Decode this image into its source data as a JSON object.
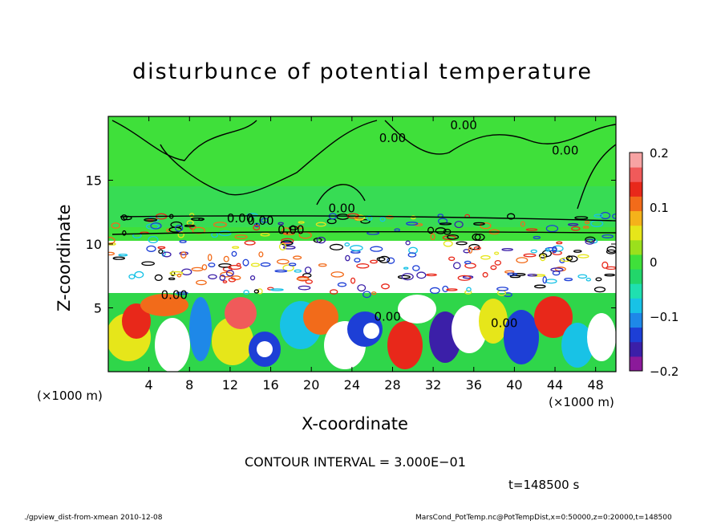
{
  "chart_data": {
    "type": "heatmap",
    "title": "disturbunce of potential temperature",
    "xlabel": "X-coordinate",
    "ylabel": "Z-coordinate",
    "x_unit_left": "(×1000 m)",
    "x_unit_right": "(×1000 m)",
    "xlim": [
      0,
      50
    ],
    "ylim": [
      0,
      20
    ],
    "x_ticks": [
      4,
      8,
      12,
      16,
      20,
      24,
      28,
      32,
      36,
      40,
      44,
      48
    ],
    "y_ticks": [
      5,
      10,
      15
    ],
    "colorbar": {
      "range": [
        -0.2,
        0.2
      ],
      "tick_labels": [
        "0.2",
        "0.1",
        "0",
        "−0.1",
        "−0.2"
      ],
      "tick_values": [
        0.2,
        0.1,
        0,
        -0.1,
        -0.2
      ],
      "colors": [
        "#8b1a9a",
        "#3b1fa8",
        "#1d3fd6",
        "#1e88e8",
        "#18c2e6",
        "#1fe0b0",
        "#22d66a",
        "#3fe03a",
        "#9be01c",
        "#e6e61a",
        "#f5b21a",
        "#f26b1a",
        "#e8281a",
        "#f05a5a",
        "#f7a3a3"
      ]
    },
    "contour_labels": [
      "0.00",
      "0.00",
      "0.00",
      "0.00",
      "0.00",
      "0.00",
      "0.00",
      "0.00",
      "0.00",
      "0.00"
    ],
    "contour_interval": "CONTOUR INTERVAL = 3.000E−01",
    "time": "t=148500 s"
  },
  "footer": {
    "left": "./gpview_dist-from-xmean  2010-12-08",
    "right": "MarsCond_PotTemp.nc@PotTempDist,x=0:50000,z=0:20000,t=148500"
  }
}
